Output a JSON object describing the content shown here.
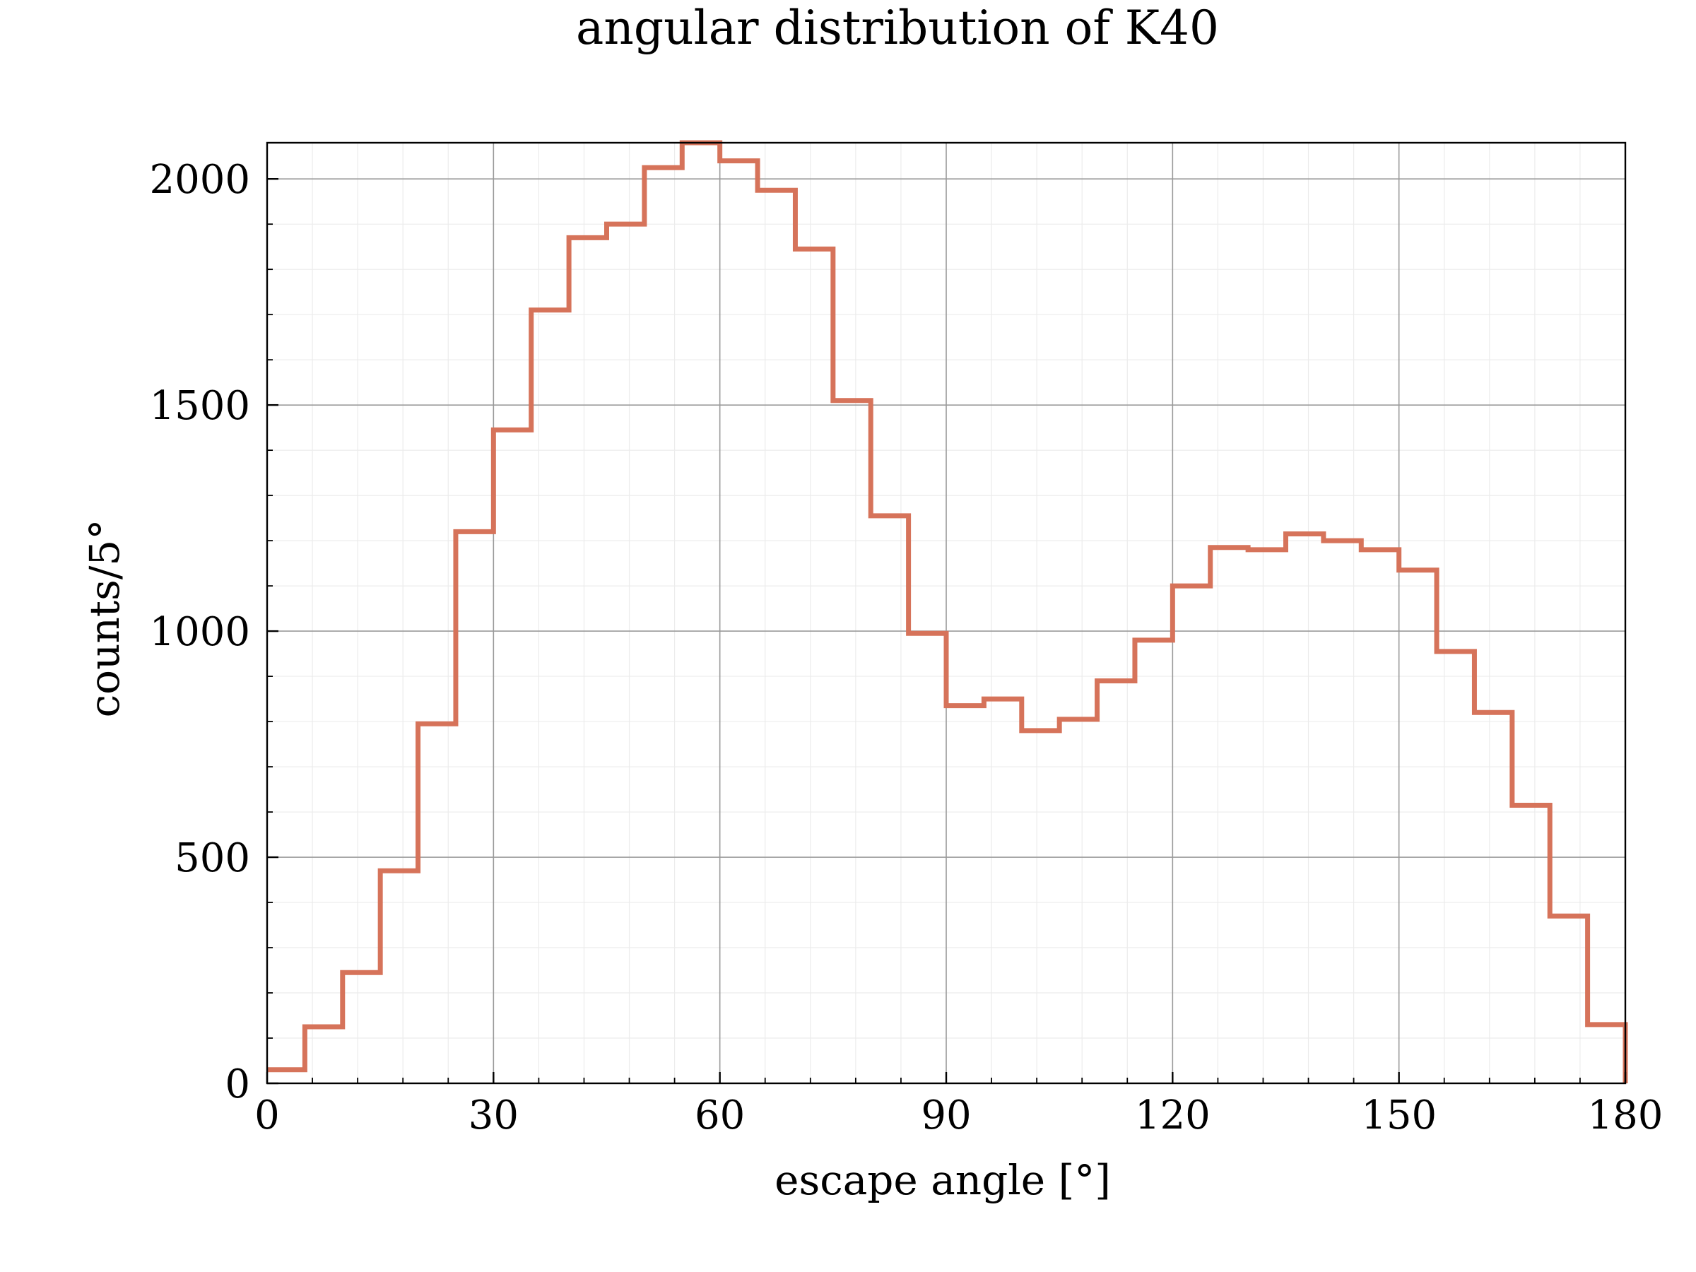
{
  "chart_data": {
    "type": "histogram",
    "title": "angular distribution of K40",
    "xlabel": "escape angle [°]",
    "ylabel": "counts/5°",
    "xlim": [
      0,
      180
    ],
    "ylim": [
      0,
      2080
    ],
    "xticks": [
      0,
      30,
      60,
      90,
      120,
      150,
      180
    ],
    "xtick_labels": [
      "0",
      "30",
      "60",
      "90",
      "120",
      "150",
      "180"
    ],
    "yticks": [
      0,
      500,
      1000,
      1500,
      2000
    ],
    "ytick_labels": [
      "0",
      "500",
      "1000",
      "1500",
      "2000"
    ],
    "grid": true,
    "bin_width": 5,
    "bin_edges_start": 0,
    "values": [
      30,
      125,
      245,
      470,
      795,
      1220,
      1445,
      1710,
      1870,
      1900,
      2025,
      2080,
      2040,
      1975,
      1845,
      1510,
      1255,
      995,
      835,
      850,
      780,
      805,
      890,
      980,
      1100,
      1185,
      1180,
      1215,
      1200,
      1180,
      1135,
      955,
      820,
      615,
      370,
      130
    ],
    "line_color": "#d6735a"
  }
}
